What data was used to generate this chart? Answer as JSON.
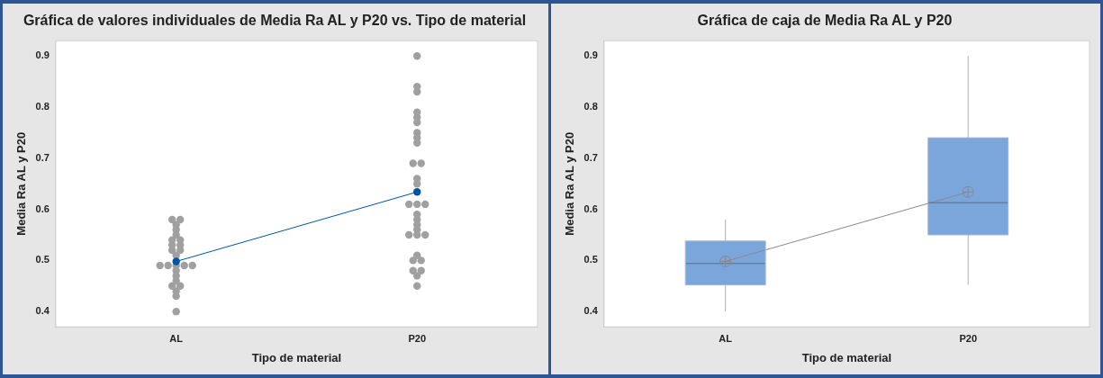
{
  "chart_data": [
    {
      "type": "scatter",
      "title": "Gráfica de valores individuales de Media Ra AL y P20 vs. Tipo de material",
      "xlabel": "Tipo de material",
      "ylabel": "Media Ra AL y P20",
      "categories": [
        "AL",
        "P20"
      ],
      "ylim": [
        0.37,
        0.93
      ],
      "yticks": [
        0.4,
        0.5,
        0.6,
        0.7,
        0.8,
        0.9
      ],
      "marker": "circle",
      "series": [
        {
          "type": "scatter",
          "color": "#a0a0a0",
          "x": [
            "AL",
            "AL",
            "AL",
            "AL",
            "AL",
            "AL",
            "AL",
            "AL",
            "AL",
            "AL",
            "AL",
            "AL",
            "AL",
            "AL",
            "AL",
            "AL",
            "AL",
            "AL",
            "AL",
            "AL",
            "AL",
            "AL",
            "AL",
            "AL",
            "AL",
            "P20",
            "P20",
            "P20",
            "P20",
            "P20",
            "P20",
            "P20",
            "P20",
            "P20",
            "P20",
            "P20",
            "P20",
            "P20",
            "P20",
            "P20",
            "P20",
            "P20",
            "P20",
            "P20",
            "P20",
            "P20",
            "P20",
            "P20",
            "P20",
            "P20",
            "P20",
            "P20",
            "P20",
            "P20",
            "P20"
          ],
          "values": [
            0.58,
            0.58,
            0.57,
            0.56,
            0.55,
            0.54,
            0.54,
            0.53,
            0.53,
            0.52,
            0.52,
            0.51,
            0.49,
            0.49,
            0.49,
            0.49,
            0.49,
            0.48,
            0.47,
            0.46,
            0.45,
            0.45,
            0.44,
            0.43,
            0.4,
            0.9,
            0.84,
            0.83,
            0.79,
            0.78,
            0.77,
            0.75,
            0.74,
            0.73,
            0.69,
            0.69,
            0.66,
            0.65,
            0.61,
            0.61,
            0.61,
            0.59,
            0.58,
            0.57,
            0.56,
            0.55,
            0.55,
            0.55,
            0.51,
            0.5,
            0.5,
            0.48,
            0.48,
            0.47,
            0.45
          ]
        },
        {
          "type": "line",
          "color": "#0054a6",
          "values": [
            0.498,
            0.634
          ]
        }
      ]
    },
    {
      "type": "box",
      "title": "Gráfica de caja de Media Ra AL y P20",
      "xlabel": "Tipo de material",
      "ylabel": "Media Ra AL y P20",
      "categories": [
        "AL",
        "P20"
      ],
      "color": "#7ba6db",
      "ylim": [
        0.37,
        0.93
      ],
      "yticks": [
        0.4,
        0.5,
        0.6,
        0.7,
        0.8,
        0.9
      ],
      "boxes": [
        {
          "low": 0.4,
          "q1": 0.452,
          "median": 0.494,
          "q3": 0.538,
          "high": 0.58,
          "mean": 0.498
        },
        {
          "low": 0.452,
          "q1": 0.55,
          "median": 0.613,
          "q3": 0.74,
          "high": 0.9,
          "mean": 0.634
        }
      ],
      "series": [
        {
          "type": "line",
          "color": "#8a8a8a",
          "marker": "none",
          "values": [
            0.498,
            0.634
          ]
        }
      ]
    }
  ]
}
